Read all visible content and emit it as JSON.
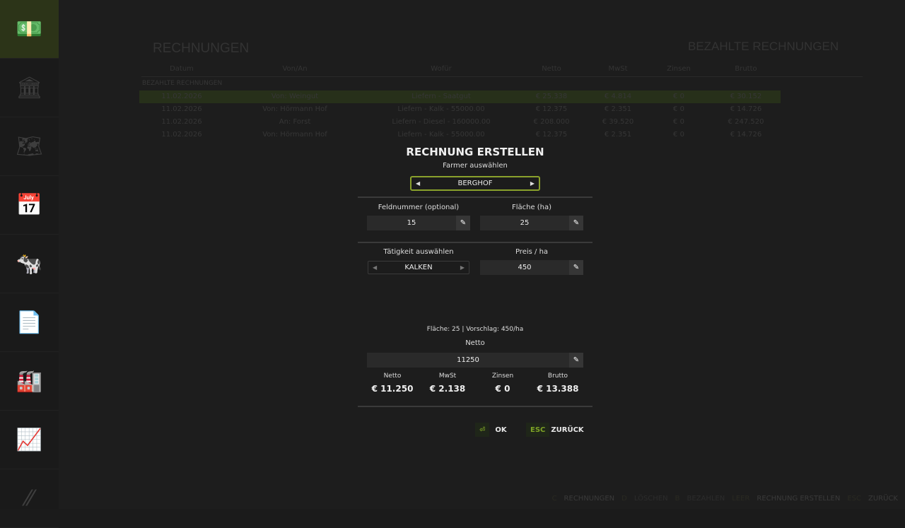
{
  "sidebar": {
    "items": [
      {
        "icon": "money-hand-icon",
        "glyph": "💵",
        "active": true
      },
      {
        "icon": "bank-icon",
        "glyph": "🏛"
      },
      {
        "icon": "map-icon",
        "glyph": "🗺"
      },
      {
        "icon": "calendar-icon",
        "glyph": "📅"
      },
      {
        "icon": "cow-icon",
        "glyph": "🐄"
      },
      {
        "icon": "documents-icon",
        "glyph": "📄"
      },
      {
        "icon": "production-icon",
        "glyph": "🏭"
      },
      {
        "icon": "growth-chart-icon",
        "glyph": "📈"
      },
      {
        "icon": "more-icon",
        "glyph": "⁄⁄"
      }
    ]
  },
  "background": {
    "title": "RECHNUNGEN",
    "right_title": "BEZAHLTE RECHNUNGEN",
    "section": "BEZAHLTE RECHNUNGEN",
    "columns": [
      "Datum",
      "Von/An",
      "Wofür",
      "Netto",
      "MwSt",
      "Zinsen",
      "Brutto"
    ],
    "rows": [
      [
        "11.02.2026",
        "Von: Weingut",
        "Liefern - Saatgut",
        "€ 25.338",
        "€ 4.814",
        "€ 0",
        "€ 30.152"
      ],
      [
        "11.02.2026",
        "Von: Hörmann Hof",
        "Liefern - Kalk - 55000.00",
        "€ 12.375",
        "€ 2.351",
        "€ 0",
        "€ 14.726"
      ],
      [
        "11.02.2026",
        "An: Forst",
        "Liefern - Diesel - 160000.00",
        "€ 208.000",
        "€ 39.520",
        "€ 0",
        "€ 247.520"
      ],
      [
        "11.02.2026",
        "Von: Hörmann Hof",
        "Liefern - Kalk - 55000.00",
        "€ 12.375",
        "€ 2.351",
        "€ 0",
        "€ 14.726"
      ]
    ]
  },
  "dialog": {
    "title": "RECHNUNG ERSTELLEN",
    "farmer_label": "Farmer auswählen",
    "farmer_value": "BERGHOF",
    "field_label": "Feldnummer (optional)",
    "field_value": "15",
    "area_label": "Fläche (ha)",
    "area_value": "25",
    "activity_label": "Tätigkeit auswählen",
    "activity_value": "KALKEN",
    "price_label": "Preis / ha",
    "price_value": "450",
    "hint": "Fläche: 25 | Vorschlag: 450/ha",
    "netto_label": "Netto",
    "netto_value": "11250",
    "summary": [
      {
        "label": "Netto",
        "value": "€ 11.250"
      },
      {
        "label": "MwSt",
        "value": "€ 2.138"
      },
      {
        "label": "Zinsen",
        "value": "€ 0"
      },
      {
        "label": "Brutto",
        "value": "€ 13.388"
      }
    ],
    "ok_key": "⏎",
    "ok_label": "OK",
    "back_key": "ESC",
    "back_label": "ZURÜCK"
  },
  "footer": [
    {
      "key": "C",
      "label": "RECHNUNGEN"
    },
    {
      "key": "D",
      "label": "LÖSCHEN"
    },
    {
      "key": "B",
      "label": "BEZAHLEN"
    },
    {
      "key": "LEER",
      "label": "RECHNUNG ERSTELLEN"
    },
    {
      "key": "ESC",
      "label": "ZURÜCK"
    }
  ],
  "colors": {
    "accent": "#8aa12c",
    "background": "#1d1d1d"
  }
}
